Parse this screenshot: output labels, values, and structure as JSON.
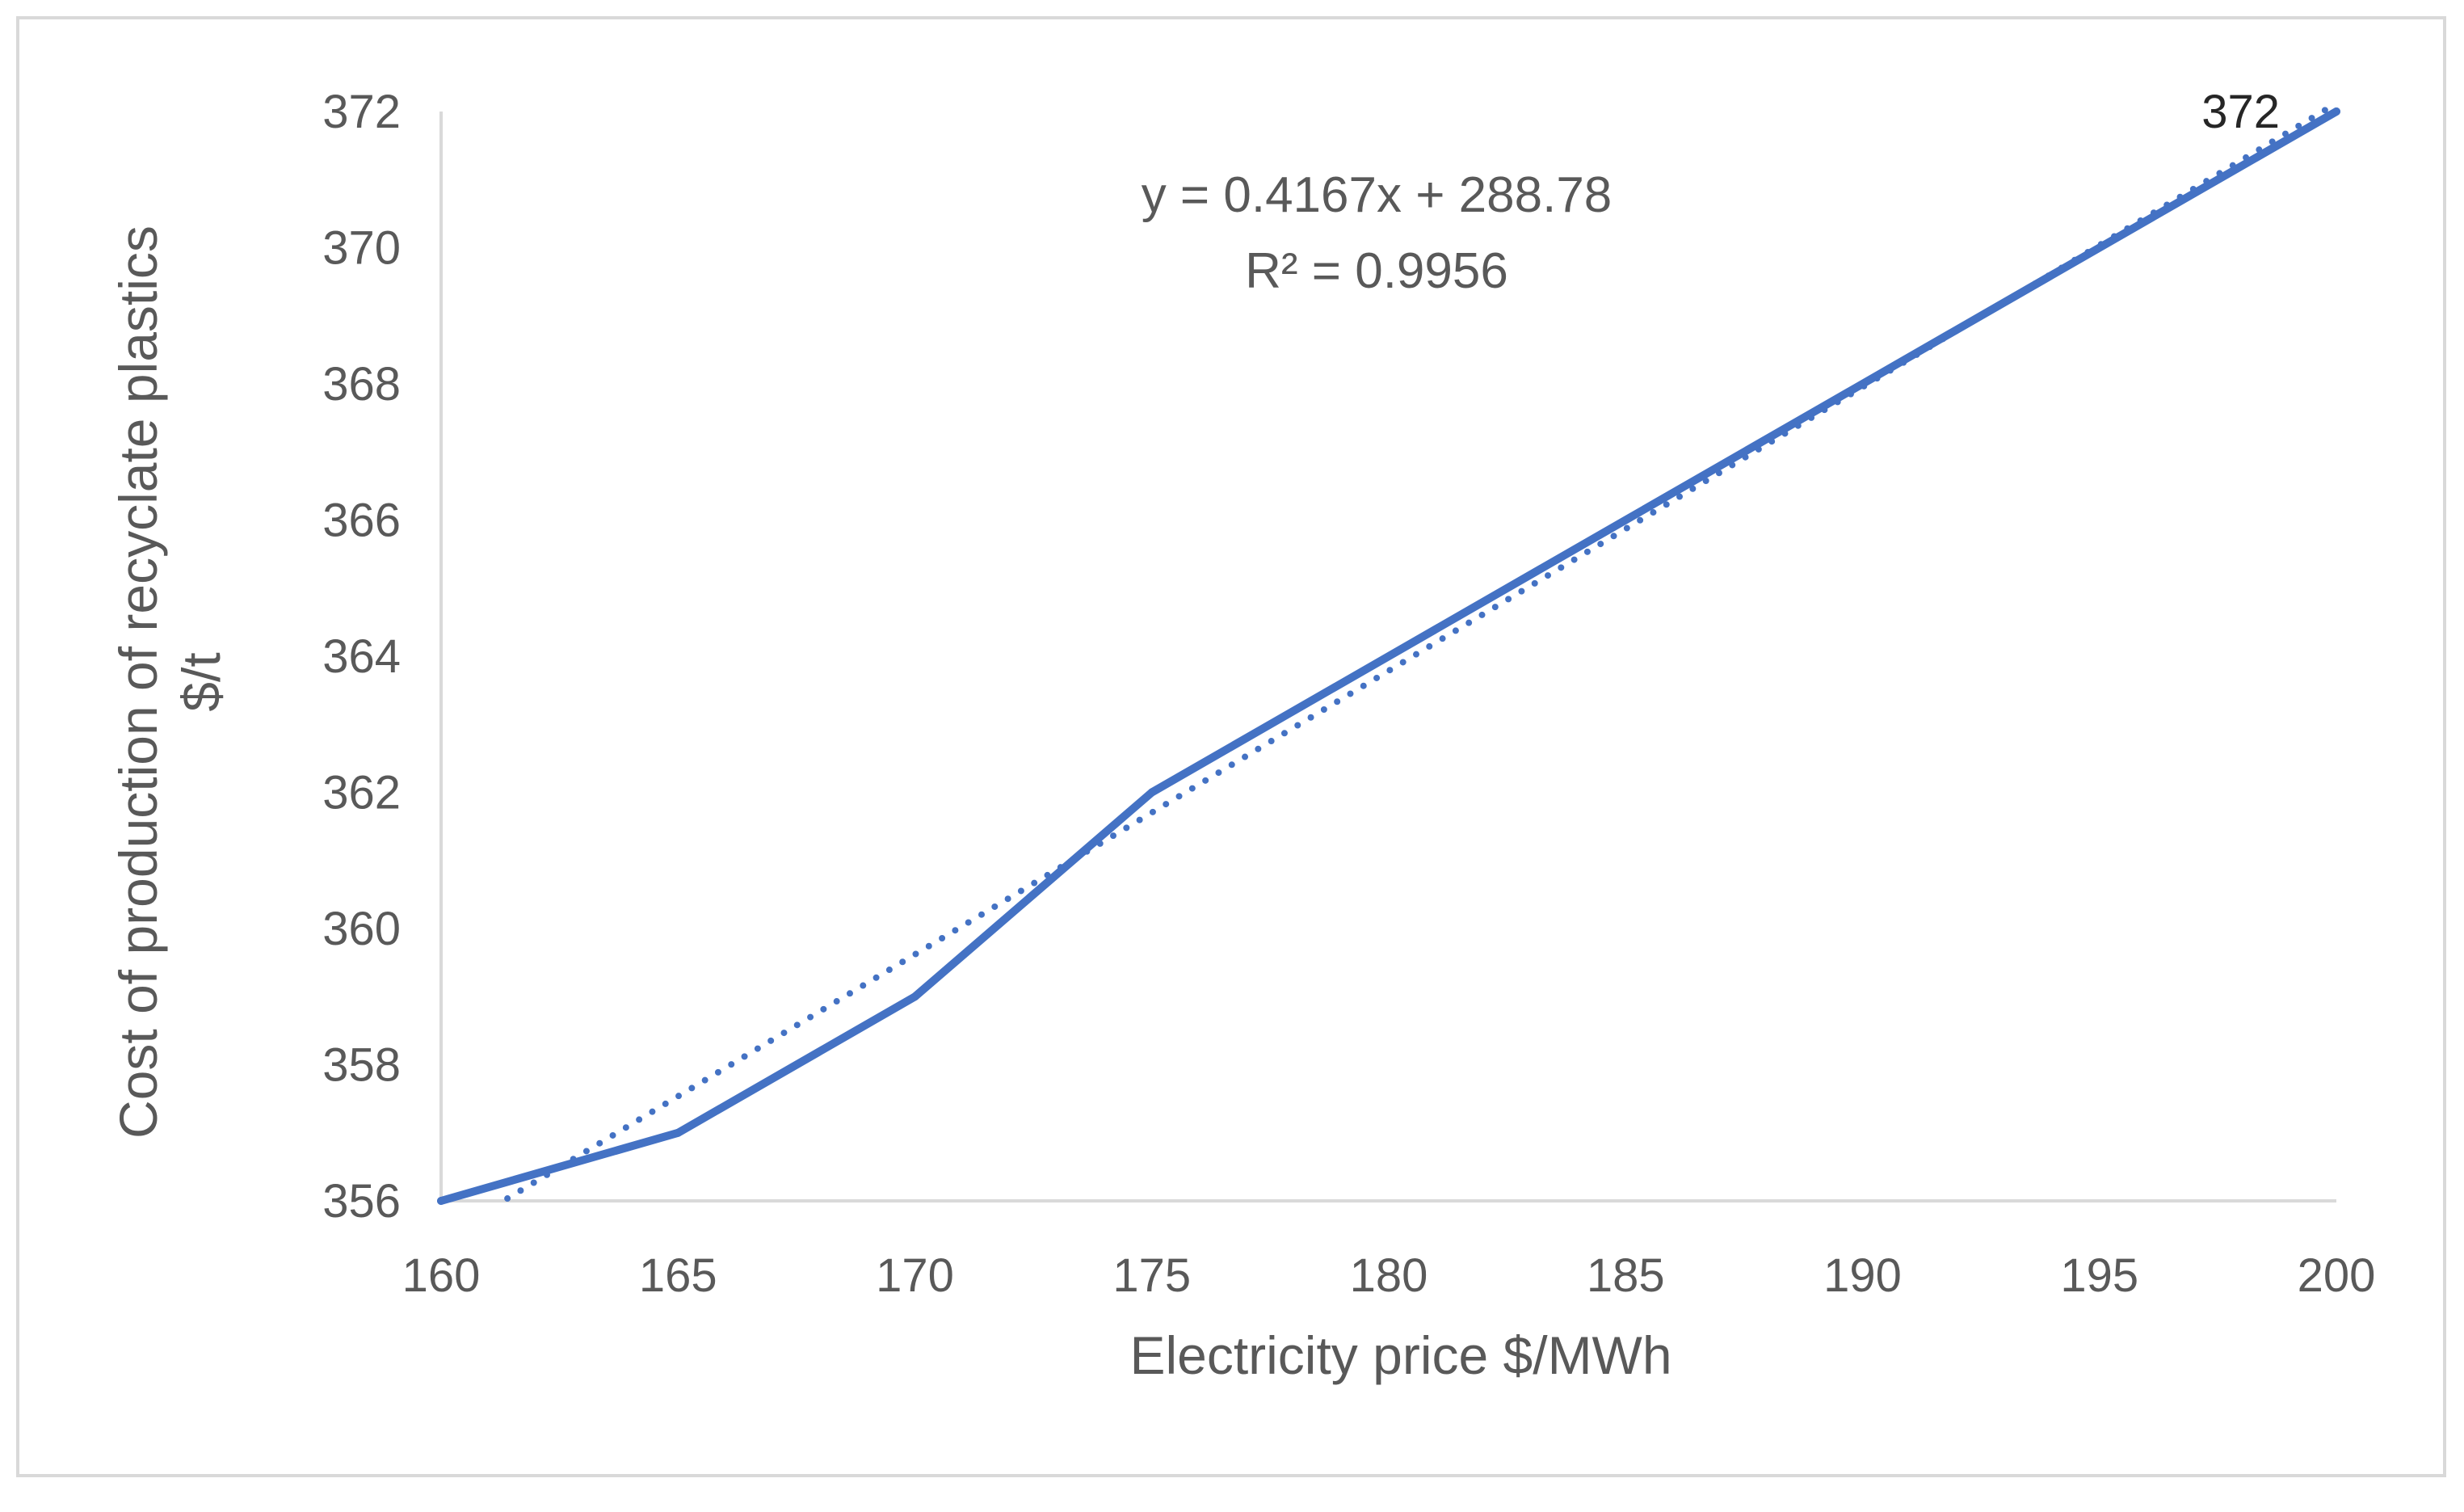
{
  "chart_data": {
    "type": "line",
    "title": "",
    "xlabel": "Electricity price $/MWh",
    "ylabel_lines": [
      "Cost of production of recyclate plastics",
      "$/t"
    ],
    "xlim": [
      160,
      200
    ],
    "ylim": [
      356,
      372
    ],
    "x_ticks": [
      160,
      165,
      170,
      175,
      180,
      185,
      190,
      195,
      200
    ],
    "y_ticks": [
      356,
      358,
      360,
      362,
      364,
      366,
      368,
      370,
      372
    ],
    "grid": false,
    "legend": "none",
    "series": [
      {
        "name": "Cost of production",
        "x": [
          160,
          165,
          170,
          175,
          200
        ],
        "y": [
          356,
          357,
          359,
          362,
          372
        ],
        "color": "#4472c4",
        "style": "solid",
        "data_labels": [
          {
            "x": 200,
            "y": 372,
            "text": "372"
          }
        ]
      }
    ],
    "trendline": {
      "type": "linear",
      "slope": 0.4167,
      "intercept": 288.78,
      "x_range": [
        161.4,
        200
      ],
      "color": "#4472c4",
      "style": "dotted",
      "equation": "y = 0.4167x + 288.78",
      "r_squared": "R² = 0.9956"
    }
  }
}
